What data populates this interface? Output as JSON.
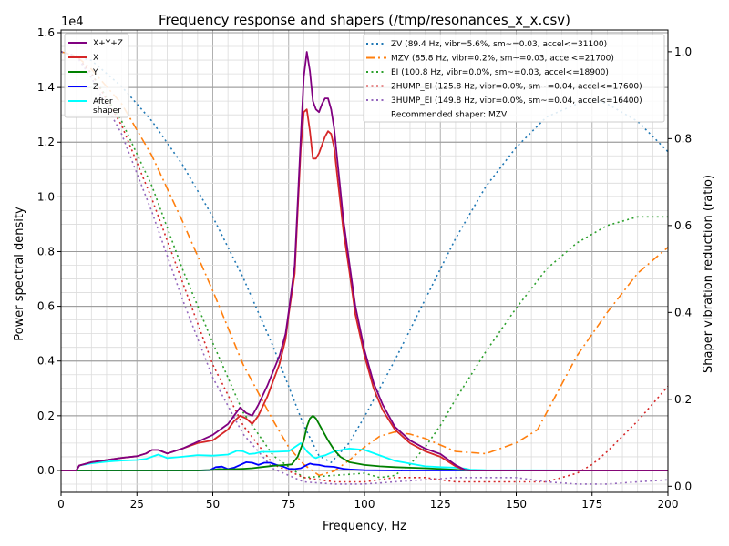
{
  "chart_data": {
    "type": "line",
    "title": "Frequency response and shapers (/tmp/resonances_x_x.csv)",
    "xlabel": "Frequency, Hz",
    "ylabel": "Power spectral density",
    "y2label": "Shaper vibration reduction (ratio)",
    "y_offset_text": "1e4",
    "xlim": [
      0,
      200
    ],
    "ylim": [
      -0.08,
      1.61
    ],
    "y2lim": [
      -0.014,
      1.05
    ],
    "xticks": [
      0,
      25,
      50,
      75,
      100,
      125,
      150,
      175,
      200
    ],
    "yticks": [
      0.0,
      0.2,
      0.4,
      0.6,
      0.8,
      1.0,
      1.2,
      1.4,
      1.6
    ],
    "yticklabels": [
      "0.0",
      "0.2",
      "0.4",
      "0.6",
      "0.8",
      "1.0",
      "1.2",
      "1.4",
      "1.6"
    ],
    "y2ticks": [
      0.0,
      0.2,
      0.4,
      0.6,
      0.8,
      1.0
    ],
    "y2ticklabels": [
      "0.0",
      "0.2",
      "0.4",
      "0.6",
      "0.8",
      "1.0"
    ],
    "grid": true,
    "legend_left_placement": "top-left",
    "legend_right_placement": "top-right",
    "recommended_text": "Recommended shaper: MZV",
    "psd_series": [
      {
        "name": "X+Y+Z",
        "color": "#800080",
        "style": "solid",
        "x": [
          0,
          5,
          6,
          10,
          15,
          20,
          25,
          28,
          30,
          32,
          35,
          40,
          45,
          50,
          55,
          57,
          59,
          61,
          63,
          65,
          68,
          72,
          74,
          75,
          77,
          78,
          79,
          80,
          81,
          82,
          83,
          84,
          85,
          86,
          87,
          88,
          89,
          90,
          91,
          92,
          93,
          95,
          97,
          100,
          103,
          106,
          110,
          115,
          120,
          125,
          130,
          133,
          135,
          137,
          140,
          150,
          200
        ],
        "y": [
          0,
          0,
          0.018,
          0.03,
          0.038,
          0.046,
          0.052,
          0.062,
          0.075,
          0.075,
          0.062,
          0.08,
          0.105,
          0.13,
          0.17,
          0.2,
          0.23,
          0.21,
          0.2,
          0.24,
          0.31,
          0.42,
          0.5,
          0.58,
          0.75,
          0.98,
          1.22,
          1.44,
          1.53,
          1.46,
          1.35,
          1.32,
          1.31,
          1.34,
          1.36,
          1.36,
          1.32,
          1.25,
          1.14,
          1.03,
          0.92,
          0.76,
          0.6,
          0.44,
          0.32,
          0.24,
          0.16,
          0.11,
          0.08,
          0.06,
          0.02,
          0.003,
          0,
          0,
          0,
          0,
          0
        ]
      },
      {
        "name": "X",
        "color": "#d62728",
        "style": "solid",
        "x": [
          0,
          5,
          6,
          10,
          15,
          20,
          25,
          28,
          30,
          32,
          35,
          40,
          45,
          50,
          55,
          57,
          59,
          61,
          63,
          65,
          68,
          72,
          74,
          75,
          77,
          78,
          79,
          80,
          81,
          82,
          83,
          84,
          85,
          86,
          87,
          88,
          89,
          90,
          91,
          92,
          93,
          95,
          97,
          100,
          103,
          106,
          110,
          115,
          120,
          125,
          130,
          133,
          135,
          137,
          140,
          150,
          200
        ],
        "y": [
          0,
          0,
          0.018,
          0.03,
          0.038,
          0.046,
          0.052,
          0.062,
          0.075,
          0.075,
          0.062,
          0.08,
          0.1,
          0.11,
          0.15,
          0.18,
          0.2,
          0.19,
          0.17,
          0.2,
          0.27,
          0.39,
          0.48,
          0.57,
          0.72,
          0.95,
          1.18,
          1.31,
          1.32,
          1.24,
          1.14,
          1.14,
          1.16,
          1.19,
          1.22,
          1.24,
          1.23,
          1.18,
          1.08,
          0.98,
          0.88,
          0.73,
          0.57,
          0.42,
          0.3,
          0.22,
          0.15,
          0.1,
          0.07,
          0.05,
          0.015,
          0.002,
          0,
          0,
          0,
          0,
          0
        ]
      },
      {
        "name": "Y",
        "color": "#008000",
        "style": "solid",
        "x": [
          0,
          10,
          20,
          30,
          40,
          45,
          50,
          52,
          55,
          60,
          63,
          66,
          70,
          74,
          76,
          78,
          80,
          81,
          82,
          83,
          84,
          85,
          86,
          88,
          90,
          92,
          95,
          100,
          105,
          110,
          120,
          130,
          135,
          140,
          150,
          200
        ],
        "y": [
          0,
          0,
          0,
          0,
          0,
          0,
          0.002,
          0.005,
          0.004,
          0.006,
          0.008,
          0.012,
          0.017,
          0.02,
          0.022,
          0.05,
          0.11,
          0.16,
          0.19,
          0.2,
          0.19,
          0.17,
          0.15,
          0.11,
          0.075,
          0.05,
          0.03,
          0.02,
          0.015,
          0.012,
          0.008,
          0.003,
          0,
          0,
          0,
          0
        ]
      },
      {
        "name": "Z",
        "color": "#0000ff",
        "style": "solid",
        "x": [
          0,
          10,
          20,
          30,
          40,
          45,
          49,
          51,
          53,
          55,
          57,
          59,
          61,
          63,
          65,
          67,
          69,
          71,
          73,
          75,
          77,
          79,
          81,
          82,
          83,
          85,
          87,
          90,
          93,
          95,
          100,
          110,
          130,
          140,
          200
        ],
        "y": [
          0,
          0,
          0,
          0,
          0,
          0,
          0.001,
          0.012,
          0.014,
          0.005,
          0.01,
          0.02,
          0.03,
          0.028,
          0.02,
          0.028,
          0.028,
          0.02,
          0.015,
          0.006,
          0.005,
          0.008,
          0.02,
          0.025,
          0.022,
          0.02,
          0.015,
          0.013,
          0.006,
          0.004,
          0.001,
          0,
          0,
          0,
          0
        ]
      },
      {
        "name": "After\nshaper",
        "color": "#00ffff",
        "style": "solid",
        "x": [
          0,
          5,
          6,
          10,
          15,
          20,
          25,
          28,
          30,
          32,
          35,
          40,
          45,
          50,
          55,
          58,
          60,
          62,
          64,
          66,
          70,
          75,
          77,
          79,
          80,
          81,
          82,
          83,
          84,
          85,
          87,
          90,
          95,
          100,
          105,
          110,
          120,
          125,
          130,
          133,
          135,
          140,
          200
        ],
        "y": [
          0,
          0,
          0.018,
          0.026,
          0.032,
          0.036,
          0.038,
          0.042,
          0.05,
          0.058,
          0.045,
          0.05,
          0.056,
          0.054,
          0.058,
          0.072,
          0.07,
          0.06,
          0.062,
          0.068,
          0.068,
          0.07,
          0.085,
          0.1,
          0.085,
          0.07,
          0.06,
          0.05,
          0.045,
          0.05,
          0.055,
          0.07,
          0.08,
          0.075,
          0.055,
          0.035,
          0.015,
          0.012,
          0.01,
          0.007,
          0.003,
          0.001,
          0
        ]
      }
    ],
    "shaper_series": [
      {
        "name": "ZV (89.4 Hz, vibr=5.6%, sm~=0.03, accel<=31100)",
        "color": "#1f77b4",
        "style": "dotted",
        "x": [
          0,
          10,
          20,
          30,
          40,
          50,
          60,
          70,
          80,
          85,
          89,
          95,
          100,
          110,
          120,
          130,
          140,
          150,
          160,
          170,
          175,
          180,
          190,
          200
        ],
        "y": [
          1,
          0.98,
          0.92,
          0.84,
          0.74,
          0.62,
          0.48,
          0.32,
          0.14,
          0.07,
          0.055,
          0.1,
          0.16,
          0.29,
          0.43,
          0.57,
          0.69,
          0.78,
          0.85,
          0.88,
          0.89,
          0.88,
          0.84,
          0.77
        ]
      },
      {
        "name": "MZV (85.8 Hz, vibr=0.2%, sm~=0.03, accel<=21700)",
        "color": "#ff7f0e",
        "style": "dashdot",
        "x": [
          0,
          5,
          10,
          20,
          30,
          40,
          50,
          60,
          70,
          75,
          80,
          85,
          90,
          95,
          100,
          105,
          110,
          115,
          120,
          125,
          130,
          140,
          150,
          157,
          170,
          180,
          190,
          200
        ],
        "y": [
          1,
          0.99,
          0.96,
          0.88,
          0.76,
          0.61,
          0.45,
          0.28,
          0.15,
          0.09,
          0.05,
          0.025,
          0.035,
          0.06,
          0.09,
          0.115,
          0.125,
          0.12,
          0.11,
          0.095,
          0.08,
          0.075,
          0.1,
          0.13,
          0.3,
          0.4,
          0.49,
          0.55
        ]
      },
      {
        "name": "EI (100.8 Hz, vibr=0.0%, sm~=0.03, accel<=18900)",
        "color": "#2ca02c",
        "style": "dotted",
        "x": [
          0,
          5,
          10,
          20,
          30,
          40,
          50,
          60,
          70,
          80,
          90,
          100,
          105,
          110,
          115,
          120,
          125,
          130,
          140,
          150,
          160,
          170,
          180,
          190,
          200
        ],
        "y": [
          1,
          0.99,
          0.95,
          0.84,
          0.69,
          0.5,
          0.33,
          0.17,
          0.07,
          0.02,
          0.025,
          0.03,
          0.02,
          0.025,
          0.05,
          0.09,
          0.14,
          0.2,
          0.31,
          0.41,
          0.5,
          0.56,
          0.6,
          0.62,
          0.62
        ]
      },
      {
        "name": "2HUMP_EI (125.8 Hz, vibr=0.0%, sm~=0.04, accel<=17600)",
        "color": "#d62728",
        "style": "dotted",
        "x": [
          0,
          5,
          10,
          20,
          30,
          40,
          50,
          60,
          70,
          80,
          90,
          100,
          110,
          120,
          130,
          140,
          150,
          160,
          170,
          175,
          180,
          190,
          200
        ],
        "y": [
          1,
          0.99,
          0.95,
          0.83,
          0.66,
          0.47,
          0.28,
          0.14,
          0.05,
          0.02,
          0.01,
          0.01,
          0.02,
          0.02,
          0.01,
          0.01,
          0.01,
          0.01,
          0.03,
          0.05,
          0.08,
          0.15,
          0.23
        ]
      },
      {
        "name": "3HUMP_EI (149.8 Hz, vibr=0.0%, sm~=0.04, accel<=16400)",
        "color": "#9467bd",
        "style": "dotted",
        "x": [
          0,
          5,
          10,
          20,
          30,
          40,
          50,
          60,
          70,
          80,
          90,
          100,
          110,
          120,
          130,
          140,
          150,
          160,
          170,
          180,
          190,
          200
        ],
        "y": [
          1,
          0.99,
          0.94,
          0.81,
          0.63,
          0.43,
          0.25,
          0.12,
          0.04,
          0.01,
          0.005,
          0.005,
          0.01,
          0.015,
          0.02,
          0.02,
          0.02,
          0.01,
          0.005,
          0.005,
          0.01,
          0.015
        ]
      }
    ]
  }
}
